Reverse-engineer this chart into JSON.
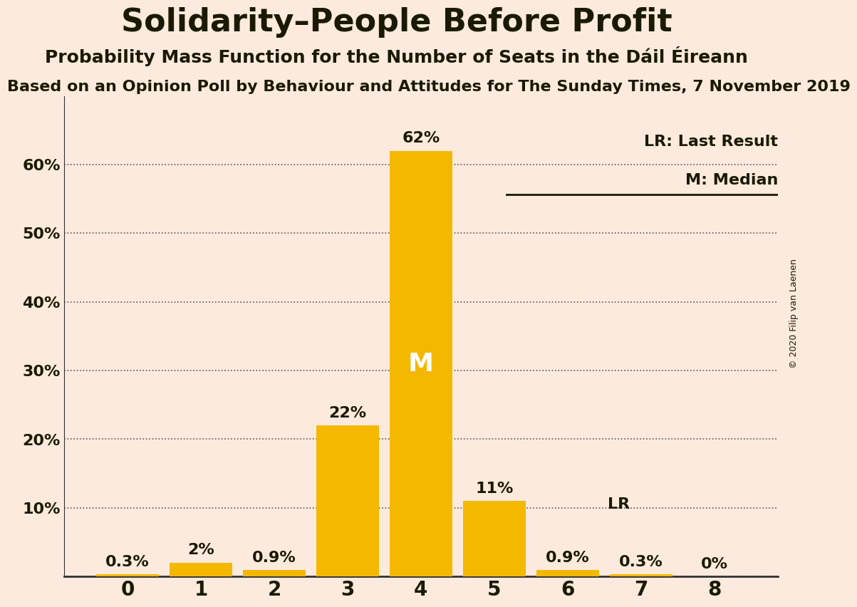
{
  "title": "Solidarity–People Before Profit",
  "subtitle": "Probability Mass Function for the Number of Seats in the Dáil Éireann",
  "source_line": "Based on an Opinion Poll by Behaviour and Attitudes for The Sunday Times, 7 November 2019",
  "copyright": "© 2020 Filip van Laenen",
  "categories": [
    0,
    1,
    2,
    3,
    4,
    5,
    6,
    7,
    8
  ],
  "values": [
    0.3,
    2.0,
    0.9,
    22.0,
    62.0,
    11.0,
    0.9,
    0.3,
    0.0
  ],
  "bar_color": "#F5B800",
  "background_color": "#FDEADE",
  "text_color": "#1a1a00",
  "median_seat": 4,
  "last_result_seat": 6,
  "ylabel": "",
  "ylim": [
    0,
    70
  ],
  "yticks": [
    0,
    10,
    20,
    30,
    40,
    50,
    60
  ],
  "ytick_labels": [
    "",
    "10%",
    "20%",
    "30%",
    "40%",
    "50%",
    "60%"
  ],
  "legend_lr": "LR: Last Result",
  "legend_m": "M: Median",
  "title_fontsize": 32,
  "subtitle_fontsize": 18,
  "source_fontsize": 16
}
